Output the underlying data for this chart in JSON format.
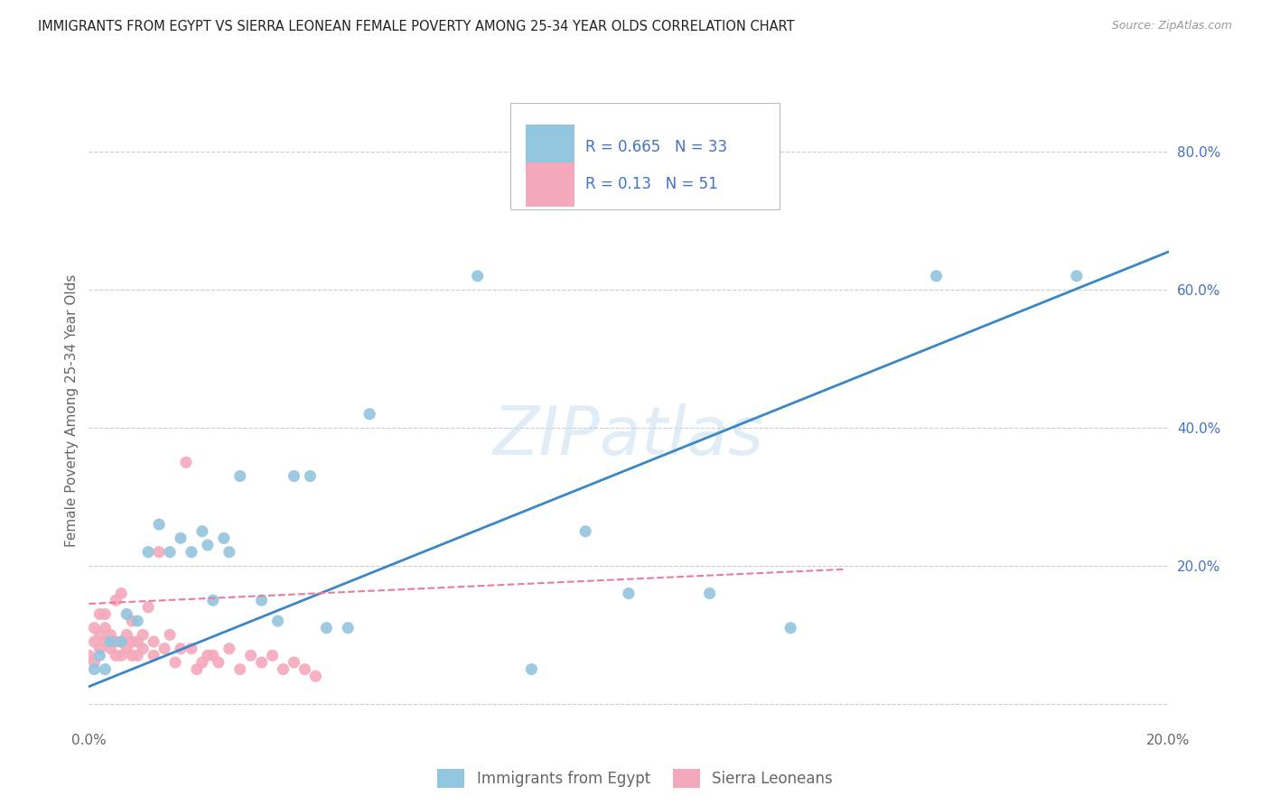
{
  "title": "IMMIGRANTS FROM EGYPT VS SIERRA LEONEAN FEMALE POVERTY AMONG 25-34 YEAR OLDS CORRELATION CHART",
  "source": "Source: ZipAtlas.com",
  "ylabel": "Female Poverty Among 25-34 Year Olds",
  "xlim": [
    0.0,
    0.2
  ],
  "ylim": [
    -0.03,
    0.88
  ],
  "blue_R": 0.665,
  "blue_N": 33,
  "pink_R": 0.13,
  "pink_N": 51,
  "blue_color": "#92c5de",
  "pink_color": "#f4a8bc",
  "blue_line_color": "#3a87c8",
  "pink_line_color": "#e87ca0",
  "watermark_color": "#c8dff0",
  "legend_label_blue": "Immigrants from Egypt",
  "legend_label_pink": "Sierra Leoneans",
  "blue_scatter_x": [
    0.001,
    0.002,
    0.003,
    0.004,
    0.006,
    0.007,
    0.009,
    0.011,
    0.013,
    0.015,
    0.017,
    0.019,
    0.021,
    0.022,
    0.023,
    0.025,
    0.026,
    0.028,
    0.032,
    0.035,
    0.038,
    0.041,
    0.044,
    0.048,
    0.052,
    0.072,
    0.082,
    0.092,
    0.1,
    0.115,
    0.13,
    0.157,
    0.183
  ],
  "blue_scatter_y": [
    0.05,
    0.07,
    0.05,
    0.09,
    0.09,
    0.13,
    0.12,
    0.22,
    0.26,
    0.22,
    0.24,
    0.22,
    0.25,
    0.23,
    0.15,
    0.24,
    0.22,
    0.33,
    0.15,
    0.12,
    0.33,
    0.33,
    0.11,
    0.11,
    0.42,
    0.62,
    0.05,
    0.25,
    0.16,
    0.16,
    0.11,
    0.62,
    0.62
  ],
  "pink_scatter_x": [
    0.0,
    0.001,
    0.001,
    0.001,
    0.002,
    0.002,
    0.002,
    0.003,
    0.003,
    0.003,
    0.004,
    0.004,
    0.005,
    0.005,
    0.005,
    0.006,
    0.006,
    0.006,
    0.007,
    0.007,
    0.008,
    0.008,
    0.008,
    0.009,
    0.009,
    0.01,
    0.01,
    0.011,
    0.012,
    0.012,
    0.013,
    0.014,
    0.015,
    0.016,
    0.017,
    0.018,
    0.019,
    0.02,
    0.021,
    0.022,
    0.023,
    0.024,
    0.026,
    0.028,
    0.03,
    0.032,
    0.034,
    0.036,
    0.038,
    0.04,
    0.042
  ],
  "pink_scatter_y": [
    0.07,
    0.06,
    0.09,
    0.11,
    0.08,
    0.1,
    0.13,
    0.09,
    0.11,
    0.13,
    0.08,
    0.1,
    0.07,
    0.09,
    0.15,
    0.07,
    0.09,
    0.16,
    0.08,
    0.1,
    0.07,
    0.09,
    0.12,
    0.07,
    0.09,
    0.08,
    0.1,
    0.14,
    0.07,
    0.09,
    0.22,
    0.08,
    0.1,
    0.06,
    0.08,
    0.35,
    0.08,
    0.05,
    0.06,
    0.07,
    0.07,
    0.06,
    0.08,
    0.05,
    0.07,
    0.06,
    0.07,
    0.05,
    0.06,
    0.05,
    0.04
  ],
  "blue_line_x": [
    0.0,
    0.2
  ],
  "blue_line_y": [
    0.025,
    0.655
  ],
  "pink_line_x": [
    0.0,
    0.14
  ],
  "pink_line_y": [
    0.145,
    0.195
  ],
  "right_yticks": [
    0.0,
    0.2,
    0.4,
    0.6,
    0.8
  ],
  "right_ytick_labels": [
    "",
    "20.0%",
    "40.0%",
    "60.0%",
    "80.0%"
  ],
  "xticks": [
    0.0,
    0.05,
    0.1,
    0.15,
    0.2
  ],
  "xtick_labels": [
    "0.0%",
    "",
    "",
    "",
    "20.0%"
  ],
  "grid_color": "#cccccc",
  "background_color": "#ffffff",
  "legend_text_color": "#4472c4",
  "axis_label_color": "#666666",
  "source_color": "#999999"
}
